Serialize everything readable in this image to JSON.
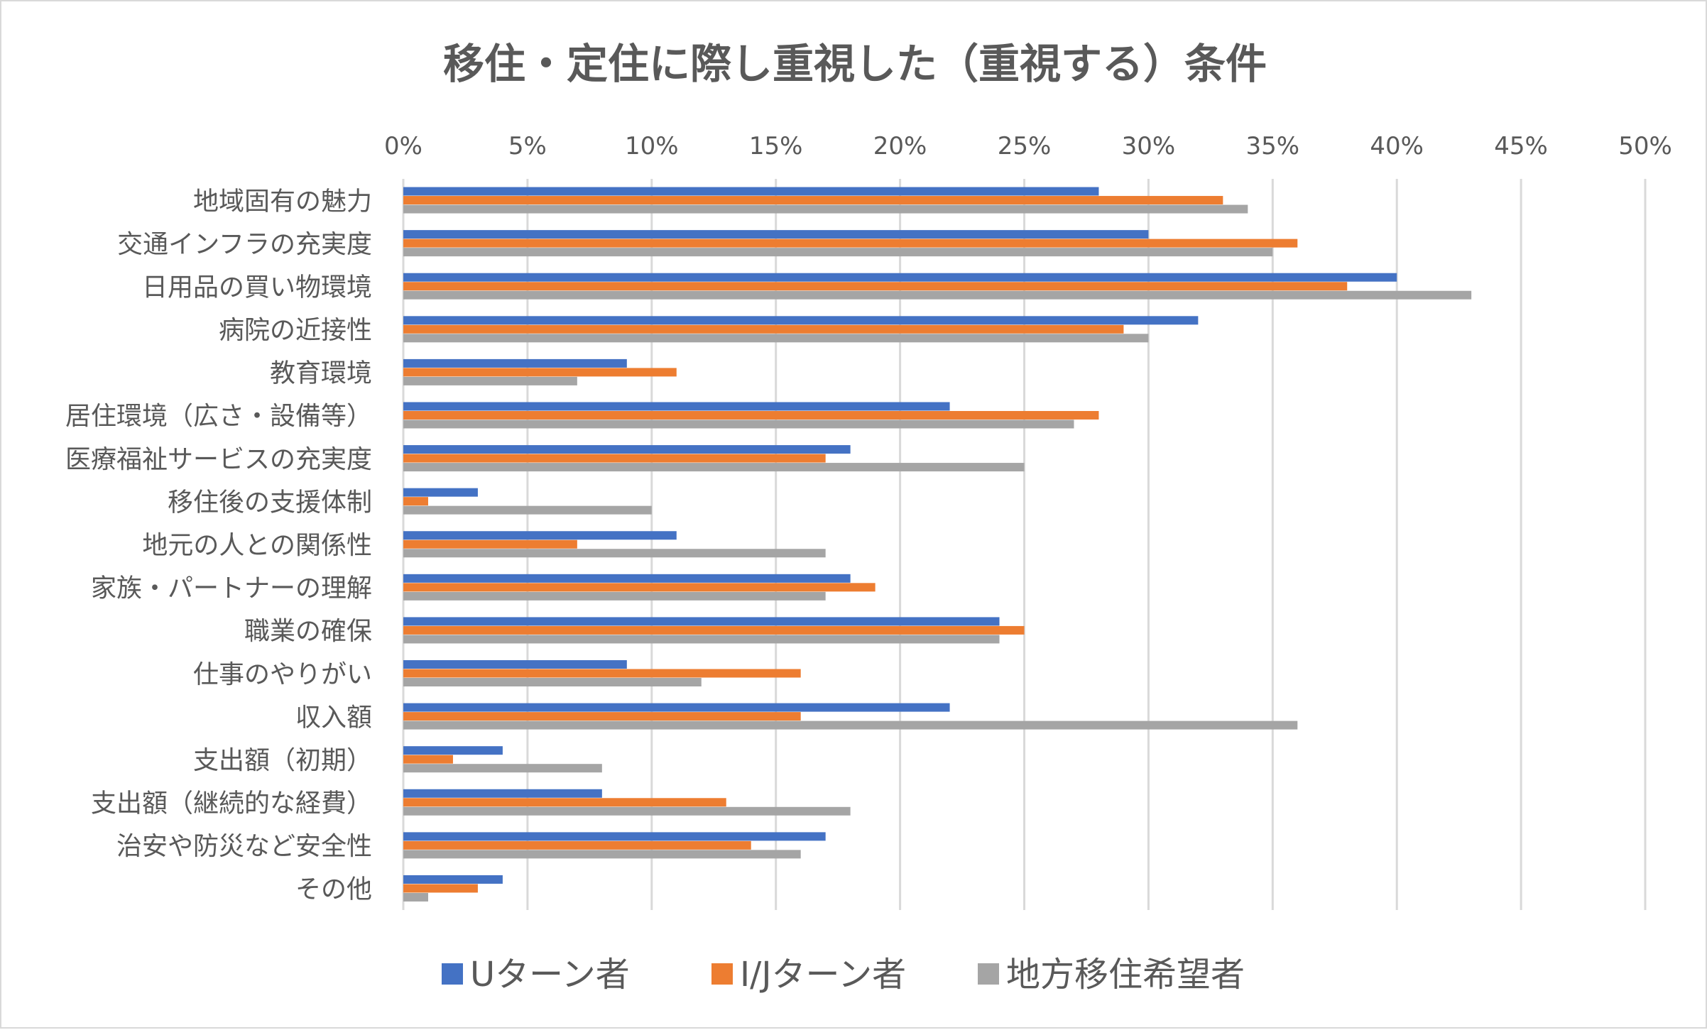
{
  "chart_data": {
    "type": "bar",
    "orientation": "horizontal",
    "title": "移住・定住に際し重視した（重視する）条件",
    "xlabel": "",
    "ylabel": "",
    "xlim": [
      0,
      50
    ],
    "x_ticks": [
      "0%",
      "5%",
      "10%",
      "15%",
      "20%",
      "25%",
      "30%",
      "35%",
      "40%",
      "45%",
      "50%"
    ],
    "x_tick_values": [
      0,
      5,
      10,
      15,
      20,
      25,
      30,
      35,
      40,
      45,
      50
    ],
    "x_axis_position": "top",
    "grid": true,
    "legend_position": "bottom",
    "categories": [
      "地域固有の魅力",
      "交通インフラの充実度",
      "日用品の買い物環境",
      "病院の近接性",
      "教育環境",
      "居住環境（広さ・設備等）",
      "医療福祉サービスの充実度",
      "移住後の支援体制",
      "地元の人との関係性",
      "家族・パートナーの理解",
      "職業の確保",
      "仕事のやりがい",
      "収入額",
      "支出額（初期）",
      "支出額（継続的な経費）",
      "治安や防災など安全性",
      "その他"
    ],
    "series": [
      {
        "name": "Uターン者",
        "color": "#4472c4",
        "values": [
          28,
          30,
          40,
          32,
          9,
          22,
          18,
          3,
          11,
          18,
          24,
          9,
          22,
          4,
          8,
          17,
          4
        ]
      },
      {
        "name": "I/Jターン者",
        "color": "#ed7d31",
        "values": [
          33,
          36,
          38,
          29,
          11,
          28,
          17,
          1,
          7,
          19,
          25,
          16,
          16,
          2,
          13,
          14,
          3
        ]
      },
      {
        "name": "地方移住希望者",
        "color": "#a5a5a5",
        "values": [
          34,
          35,
          43,
          30,
          7,
          27,
          25,
          10,
          17,
          17,
          24,
          12,
          36,
          8,
          18,
          16,
          1
        ]
      }
    ],
    "unit": "%"
  }
}
